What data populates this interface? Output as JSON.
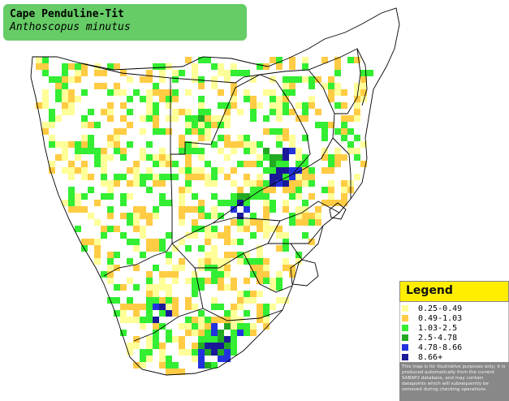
{
  "species": {
    "common_name": "Cape Penduline-Tit",
    "scientific_name": "Anthoscopus minutus"
  },
  "legend": {
    "title": "Legend",
    "items": [
      {
        "range": "0.25-0.49",
        "color": "#ffff99"
      },
      {
        "range": "0.49-1.03",
        "color": "#ffcc44"
      },
      {
        "range": "1.03-2.5",
        "color": "#33ee33"
      },
      {
        "range": "2.5-4.78",
        "color": "#22aa22"
      },
      {
        "range": "4.78-8.66",
        "color": "#2233dd"
      },
      {
        "range": "8.66+",
        "color": "#1a1a99"
      }
    ],
    "disclaimer": "This map is for illustrative purposes only; it is produced automatically from the current SABAP2 database, and may contain datapoints which will subsequently be removed during checking operations."
  },
  "colors": {
    "title_box": "#66cc66",
    "legend_header": "#ffee00",
    "border_line": "#000000"
  }
}
